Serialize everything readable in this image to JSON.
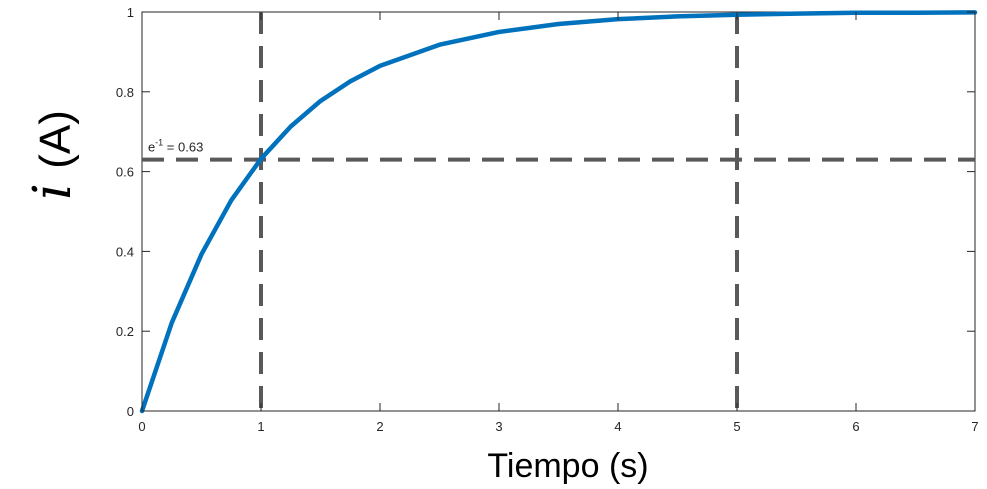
{
  "chart_data": {
    "type": "line",
    "title": "",
    "xlabel": "Tiempo (s)",
    "ylabel": "i (A)",
    "ylabel_var": "i",
    "ylabel_unit": "(A)",
    "xlim": [
      0,
      7
    ],
    "ylim": [
      0,
      1
    ],
    "xticks": [
      0,
      1,
      2,
      3,
      4,
      5,
      6,
      7
    ],
    "yticks": [
      0,
      0.2,
      0.4,
      0.6,
      0.8,
      1
    ],
    "xtick_labels": [
      "0",
      "1",
      "2",
      "3",
      "4",
      "5",
      "6",
      "7"
    ],
    "ytick_labels": [
      "0",
      "0.2",
      "0.4",
      "0.6",
      "0.8",
      "1"
    ],
    "grid": false,
    "series": [
      {
        "color": "#0072BD",
        "x": [
          0,
          0.25,
          0.5,
          0.75,
          1,
          1.25,
          1.5,
          1.75,
          2,
          2.5,
          3,
          3.5,
          4,
          4.5,
          5,
          5.5,
          6,
          6.5,
          7
        ],
        "y": [
          0,
          0.221,
          0.393,
          0.528,
          0.632,
          0.713,
          0.777,
          0.826,
          0.865,
          0.918,
          0.95,
          0.97,
          0.982,
          0.989,
          0.993,
          0.996,
          0.998,
          0.998,
          0.999
        ]
      }
    ],
    "reference_lines": [
      {
        "orientation": "vertical",
        "x": 1,
        "color": "#595959",
        "style": "dashed"
      },
      {
        "orientation": "vertical",
        "x": 5,
        "color": "#595959",
        "style": "dashed"
      },
      {
        "orientation": "horizontal",
        "y": 0.63,
        "color": "#595959",
        "style": "dashed"
      }
    ],
    "annotations": [
      {
        "text_base": "e",
        "text_sup": "-1",
        "text_rest": " = 0.63",
        "x": 0.05,
        "y": 0.65
      }
    ]
  }
}
